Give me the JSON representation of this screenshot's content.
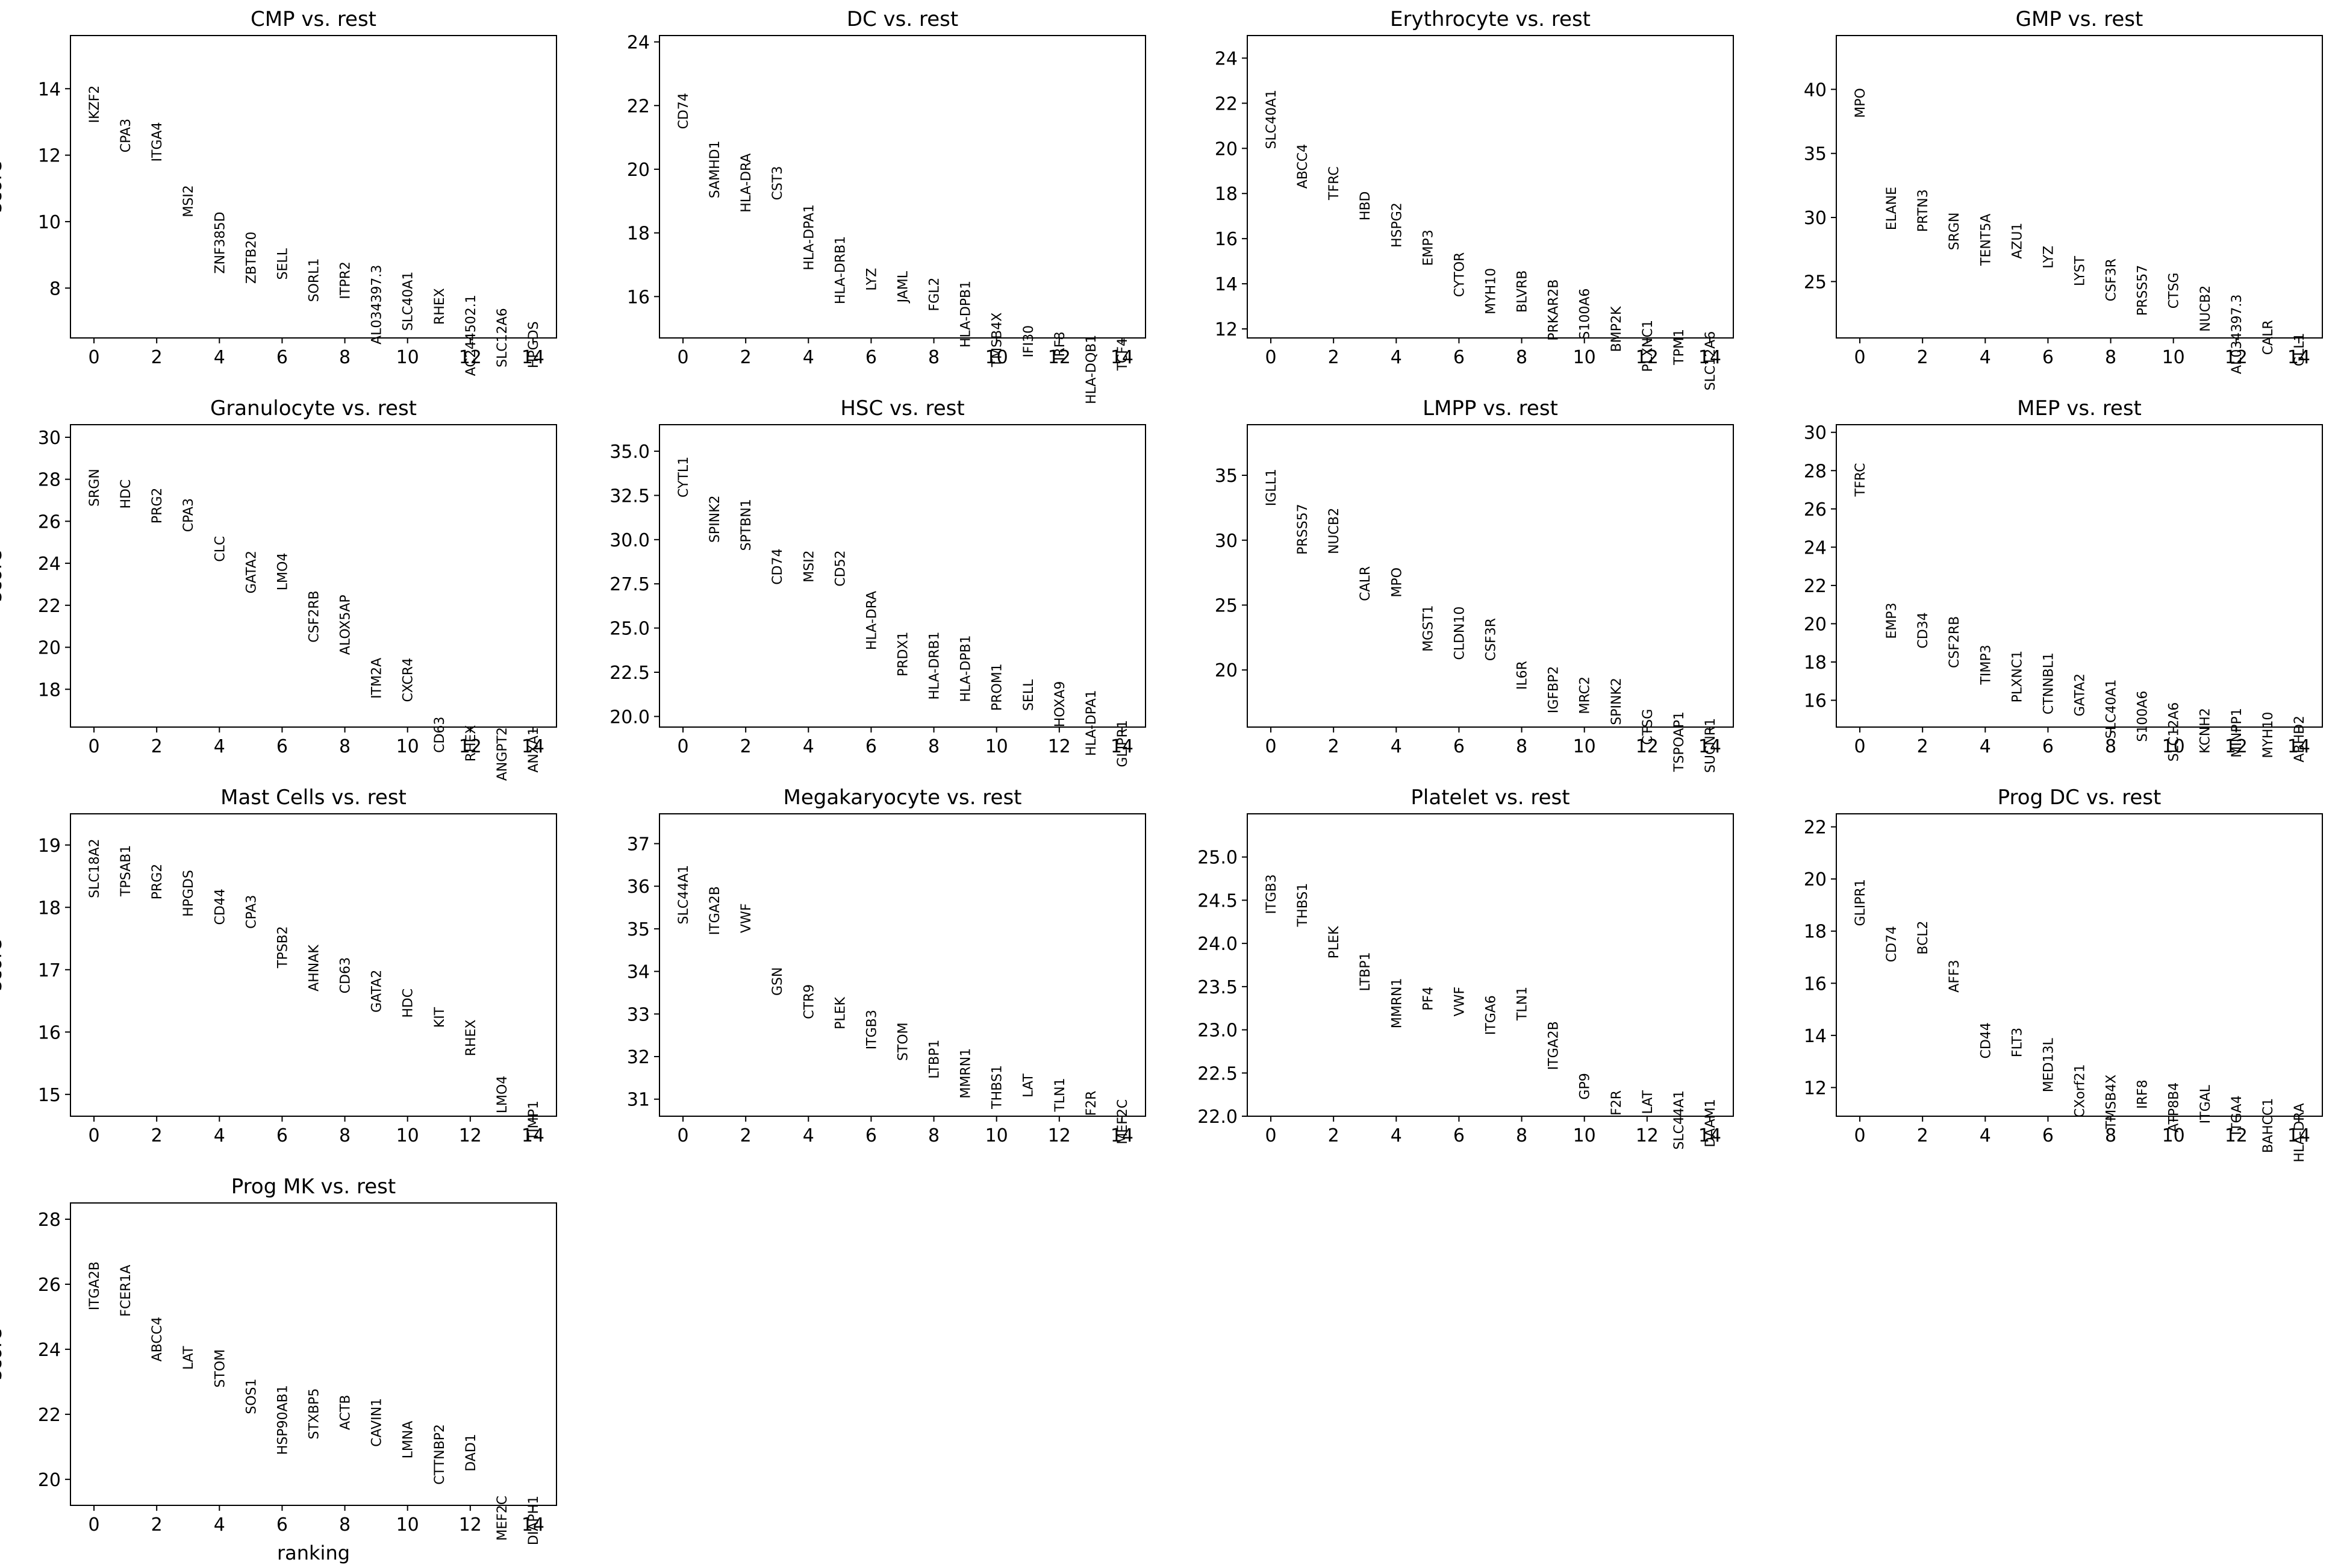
{
  "chart_data": [
    {
      "type": "scatter",
      "title": "CMP vs. rest",
      "ylabel": "score",
      "xlabel": "",
      "xticks": [
        0,
        2,
        4,
        6,
        8,
        10,
        12,
        14
      ],
      "xlim": [
        -0.75,
        14.75
      ],
      "ylim": [
        6.5,
        15.6
      ],
      "yticks": [
        8,
        10,
        12,
        14
      ],
      "genes": [
        "IKZF2",
        "CPA3",
        "ITGA4",
        "MSI2",
        "ZNF385D",
        "ZBTB20",
        "SELL",
        "SORL1",
        "ITPR2",
        "AL034397.3",
        "SLC40A1",
        "RHEX",
        "AC244502.1",
        "SLC12A6",
        "HPGDS"
      ],
      "scores": [
        14.1,
        13.1,
        13.0,
        11.1,
        10.3,
        9.7,
        9.2,
        8.9,
        8.8,
        8.7,
        8.5,
        8.0,
        7.8,
        7.4,
        7.0
      ]
    },
    {
      "type": "scatter",
      "title": "DC vs. rest",
      "ylabel": "",
      "xlabel": "",
      "xticks": [
        0,
        2,
        4,
        6,
        8,
        10,
        12,
        14
      ],
      "xlim": [
        -0.75,
        14.75
      ],
      "ylim": [
        14.7,
        24.2
      ],
      "yticks": [
        16,
        18,
        20,
        22,
        24
      ],
      "genes": [
        "CD74",
        "SAMHD1",
        "HLA-DRA",
        "CST3",
        "HLA-DPA1",
        "HLA-DRB1",
        "LYZ",
        "JAML",
        "FGL2",
        "HLA-DPB1",
        "TMSB4X",
        "IFI30",
        "IRF8",
        "HLA-DQB1",
        "TCF4"
      ],
      "scores": [
        22.4,
        20.9,
        20.5,
        20.1,
        18.9,
        17.9,
        16.9,
        16.8,
        16.6,
        16.5,
        15.5,
        15.1,
        14.9,
        14.8,
        14.7
      ]
    },
    {
      "type": "scatter",
      "title": "Erythrocyte vs. rest",
      "ylabel": "",
      "xlabel": "",
      "xticks": [
        0,
        2,
        4,
        6,
        8,
        10,
        12,
        14
      ],
      "xlim": [
        -0.75,
        14.75
      ],
      "ylim": [
        11.6,
        25.0
      ],
      "yticks": [
        12,
        14,
        16,
        18,
        20,
        22,
        24
      ],
      "genes": [
        "SLC40A1",
        "ABCC4",
        "TFRC",
        "HBD",
        "HSPG2",
        "EMP3",
        "CYTOR",
        "MYH10",
        "BLVRB",
        "PRKAR2B",
        "S100A6",
        "BMP2K",
        "PLXNC1",
        "TPM1",
        "SLC12A6"
      ],
      "scores": [
        22.6,
        20.2,
        19.2,
        18.1,
        17.6,
        16.4,
        15.4,
        14.7,
        14.6,
        14.2,
        13.8,
        13.0,
        12.4,
        12.0,
        11.9
      ]
    },
    {
      "type": "scatter",
      "title": "GMP vs. rest",
      "ylabel": "",
      "xlabel": "",
      "xticks": [
        0,
        2,
        4,
        6,
        8,
        10,
        12,
        14
      ],
      "xlim": [
        -0.75,
        14.75
      ],
      "ylim": [
        20.6,
        44.2
      ],
      "yticks": [
        25,
        30,
        35,
        40
      ],
      "genes": [
        "MPO",
        "ELANE",
        "PRTN3",
        "SRGN",
        "TENT5A",
        "AZU1",
        "LYZ",
        "LYST",
        "CSF3R",
        "PRSS57",
        "CTSG",
        "NUCB2",
        "AL034397.3",
        "CALR",
        "GLL1"
      ],
      "scores": [
        40.1,
        32.4,
        32.2,
        30.4,
        30.3,
        29.6,
        27.8,
        27.0,
        26.8,
        26.3,
        25.7,
        24.7,
        24.0,
        22.0,
        21.0
      ]
    },
    {
      "type": "scatter",
      "title": "Granulocyte vs. rest",
      "ylabel": "score",
      "xlabel": "",
      "xticks": [
        0,
        2,
        4,
        6,
        8,
        10,
        12,
        14
      ],
      "xlim": [
        -0.75,
        14.75
      ],
      "ylim": [
        16.2,
        30.6
      ],
      "yticks": [
        18,
        20,
        22,
        24,
        26,
        28,
        30
      ],
      "genes": [
        "SRGN",
        "HDC",
        "PRG2",
        "CPA3",
        "CLC",
        "GATA2",
        "LMO4",
        "CSF2RB",
        "ALOX5AP",
        "ITM2A",
        "CXCR4",
        "CD63",
        "RHEX",
        "ANGPT2",
        "ANXA1"
      ],
      "scores": [
        28.5,
        28.0,
        27.6,
        27.1,
        25.3,
        24.6,
        24.5,
        22.7,
        22.5,
        19.5,
        19.5,
        16.7,
        16.3,
        16.2,
        16.2
      ]
    },
    {
      "type": "scatter",
      "title": "HSC vs. rest",
      "ylabel": "",
      "xlabel": "",
      "xticks": [
        0,
        2,
        4,
        6,
        8,
        10,
        12,
        14
      ],
      "xlim": [
        -0.75,
        14.75
      ],
      "ylim": [
        19.4,
        36.5
      ],
      "yticks": [
        20.0,
        22.5,
        25.0,
        27.5,
        30.0,
        32.5,
        35.0
      ],
      "genes": [
        "CYTL1",
        "SPINK2",
        "SPTBN1",
        "CD74",
        "MSI2",
        "CD52",
        "HLA-DRA",
        "PRDX1",
        "HLA-DRB1",
        "HLA-DPB1",
        "PROM1",
        "SELL",
        "HOXA9",
        "HLA-DPA1",
        "GLIPR1"
      ],
      "scores": [
        34.7,
        32.5,
        32.3,
        29.5,
        29.4,
        29.4,
        27.1,
        24.8,
        24.8,
        24.6,
        23.0,
        22.1,
        22.0,
        21.5,
        19.8
      ]
    },
    {
      "type": "scatter",
      "title": "LMPP vs. rest",
      "ylabel": "",
      "xlabel": "",
      "xticks": [
        0,
        2,
        4,
        6,
        8,
        10,
        12,
        14
      ],
      "xlim": [
        -0.75,
        14.75
      ],
      "ylim": [
        15.6,
        38.9
      ],
      "yticks": [
        20,
        25,
        30,
        35
      ],
      "genes": [
        "IGLL1",
        "PRSS57",
        "NUCB2",
        "CALR",
        "MPO",
        "MGST1",
        "CLDN10",
        "CSF3R",
        "IL6R",
        "IGFBP2",
        "MRC2",
        "SPINK2",
        "CTSG",
        "TSPOAP1",
        "SUCNR1"
      ],
      "scores": [
        35.5,
        32.8,
        32.5,
        28.0,
        27.9,
        25.0,
        24.9,
        24.0,
        20.7,
        20.3,
        19.5,
        19.4,
        17.0,
        16.8,
        16.3
      ]
    },
    {
      "type": "scatter",
      "title": "MEP vs. rest",
      "ylabel": "",
      "xlabel": "",
      "xticks": [
        0,
        2,
        4,
        6,
        8,
        10,
        12,
        14
      ],
      "xlim": [
        -0.75,
        14.75
      ],
      "ylim": [
        14.6,
        30.4
      ],
      "yticks": [
        16,
        18,
        20,
        22,
        24,
        26,
        28,
        30
      ],
      "genes": [
        "TFRC",
        "EMP3",
        "CD34",
        "CSF2RB",
        "TIMP3",
        "PLXNC1",
        "CTNNBL1",
        "GATA2",
        "SLC40A1",
        "S100A6",
        "SLC12A6",
        "KCNH2",
        "MINPP1",
        "MYH10",
        "ABHD2"
      ],
      "scores": [
        28.4,
        21.1,
        20.6,
        20.4,
        18.9,
        18.6,
        18.5,
        17.4,
        17.1,
        16.5,
        15.9,
        15.6,
        15.6,
        15.4,
        15.2
      ]
    },
    {
      "type": "scatter",
      "title": "Mast Cells vs. rest",
      "ylabel": "score",
      "xlabel": "",
      "xticks": [
        0,
        2,
        4,
        6,
        8,
        10,
        12,
        14
      ],
      "xlim": [
        -0.75,
        14.75
      ],
      "ylim": [
        14.65,
        19.5
      ],
      "yticks": [
        15,
        16,
        17,
        18,
        19
      ],
      "genes": [
        "SLC18A2",
        "TPSAB1",
        "PRG2",
        "HPGDS",
        "CD44",
        "CPA3",
        "TPSB2",
        "AHNAK",
        "CD63",
        "GATA2",
        "HDC",
        "KIT",
        "RHEX",
        "LMO4",
        "TIMP1"
      ],
      "scores": [
        19.1,
        19.0,
        18.7,
        18.6,
        18.3,
        18.2,
        17.7,
        17.4,
        17.2,
        17.0,
        16.7,
        16.4,
        16.2,
        15.3,
        14.9
      ]
    },
    {
      "type": "scatter",
      "title": "Megakaryocyte vs. rest",
      "ylabel": "",
      "xlabel": "",
      "xticks": [
        0,
        2,
        4,
        6,
        8,
        10,
        12,
        14
      ],
      "xlim": [
        -0.75,
        14.75
      ],
      "ylim": [
        30.6,
        37.7
      ],
      "yticks": [
        31,
        32,
        33,
        34,
        35,
        36,
        37
      ],
      "genes": [
        "SLC44A1",
        "ITGA2B",
        "VWF",
        "GSN",
        "CTR9",
        "PLEK",
        "ITGB3",
        "STOM",
        "LTBP1",
        "MMRN1",
        "THBS1",
        "LAT",
        "TLN1",
        "F2R",
        "MEF2C"
      ],
      "scores": [
        36.5,
        36.0,
        35.6,
        34.1,
        33.7,
        33.4,
        33.1,
        32.8,
        32.4,
        32.2,
        31.8,
        31.6,
        31.5,
        31.2,
        31.0
      ]
    },
    {
      "type": "scatter",
      "title": "Platelet vs. rest",
      "ylabel": "",
      "xlabel": "",
      "xticks": [
        0,
        2,
        4,
        6,
        8,
        10,
        12,
        14
      ],
      "xlim": [
        -0.75,
        14.75
      ],
      "ylim": [
        22.0,
        25.5
      ],
      "yticks": [
        22.0,
        22.5,
        23.0,
        23.5,
        24.0,
        24.5,
        25.0
      ],
      "genes": [
        "ITGB3",
        "THBS1",
        "PLEK",
        "LTBP1",
        "MMRN1",
        "PF4",
        "VWF",
        "ITGA6",
        "TLN1",
        "ITGA2B",
        "GP9",
        "F2R",
        "LAT",
        "SLC44A1",
        "DAAM1"
      ],
      "scores": [
        24.8,
        24.7,
        24.2,
        23.9,
        23.6,
        23.5,
        23.5,
        23.4,
        23.5,
        23.1,
        22.5,
        22.3,
        22.3,
        22.3,
        22.2
      ]
    },
    {
      "type": "scatter",
      "title": "Prog DC vs. rest",
      "ylabel": "",
      "xlabel": "",
      "xticks": [
        0,
        2,
        4,
        6,
        8,
        10,
        12,
        14
      ],
      "xlim": [
        -0.75,
        14.75
      ],
      "ylim": [
        10.9,
        22.5
      ],
      "yticks": [
        12,
        14,
        16,
        18,
        20,
        22
      ],
      "genes": [
        "GLIPR1",
        "CD74",
        "BCL2",
        "AFF3",
        "CD44",
        "FLT3",
        "MED13L",
        "CXorf21",
        "TMSB4X",
        "IRF8",
        "ATP8B4",
        "ITGAL",
        "ITGA4",
        "BAHCC1",
        "HLA-DRA"
      ],
      "scores": [
        20.0,
        18.2,
        18.4,
        16.9,
        14.5,
        14.3,
        13.9,
        12.9,
        12.5,
        12.3,
        12.2,
        12.1,
        11.7,
        11.6,
        11.4
      ]
    },
    {
      "type": "scatter",
      "title": "Prog MK vs. rest",
      "ylabel": "score",
      "xlabel": "ranking",
      "xticks": [
        0,
        2,
        4,
        6,
        8,
        10,
        12,
        14
      ],
      "xlim": [
        -0.75,
        14.75
      ],
      "ylim": [
        19.2,
        28.5
      ],
      "yticks": [
        20,
        22,
        24,
        26,
        28
      ],
      "genes": [
        "ITGA2B",
        "FCER1A",
        "ABCC4",
        "LAT",
        "STOM",
        "SOS1",
        "HSP90AB1",
        "STXBP5",
        "ACTB",
        "CAVIN1",
        "LMNA",
        "CTTNBP2",
        "DAD1",
        "MEF2C",
        "DIAPH1"
      ],
      "scores": [
        26.7,
        26.6,
        25.0,
        24.1,
        24.0,
        23.1,
        22.9,
        22.8,
        22.6,
        22.5,
        21.8,
        21.7,
        21.4,
        19.5,
        19.5
      ]
    }
  ]
}
